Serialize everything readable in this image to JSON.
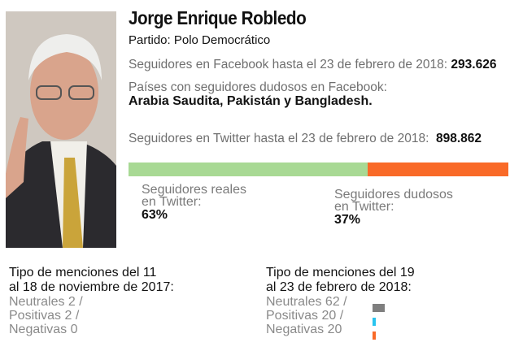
{
  "profile": {
    "name": "Jorge Enrique Robledo",
    "party": "Partido: Polo Democrático",
    "facebook_label": "Seguidores en Facebook hasta el 23 de febrero de 2018:",
    "facebook_value": "293.626",
    "dubious_countries_label": "Países con seguidores dudosos en Facebook:",
    "dubious_countries_value": "Arabia Saudita, Pakistán y Bangladesh.",
    "twitter_label": "Seguidores en Twitter hasta el 23 de febrero de 2018:",
    "twitter_value": "898.862"
  },
  "twitter_split": {
    "real_percent": 63,
    "dubious_percent": 37,
    "real_label_1": "Seguidores reales",
    "real_label_2": "en Twitter:",
    "real_value": "63%",
    "dubious_label_1": "Seguidores dudosos",
    "dubious_label_2": "en Twitter:",
    "dubious_value": "37%",
    "colors": {
      "real": "#a8d994",
      "dubious": "#f96a28"
    }
  },
  "mentions_nov": {
    "title_1": "Tipo de menciones del 11",
    "title_2": "al 18 de noviembre de 2017:",
    "neutral": "Neutrales 2 /",
    "positive": "Positivas 2 /",
    "negative": "Negativas 0"
  },
  "mentions_feb": {
    "title_1": "Tipo de menciones del 19",
    "title_2": "al 23 de febrero de 2018:",
    "neutral": "Neutrales 62 /",
    "positive": "Positivas 20 /",
    "negative": "Negativas 20",
    "colors": {
      "neutral": "#7f7f7f",
      "positive": "#29c4ef",
      "negative": "#f96a28"
    }
  }
}
